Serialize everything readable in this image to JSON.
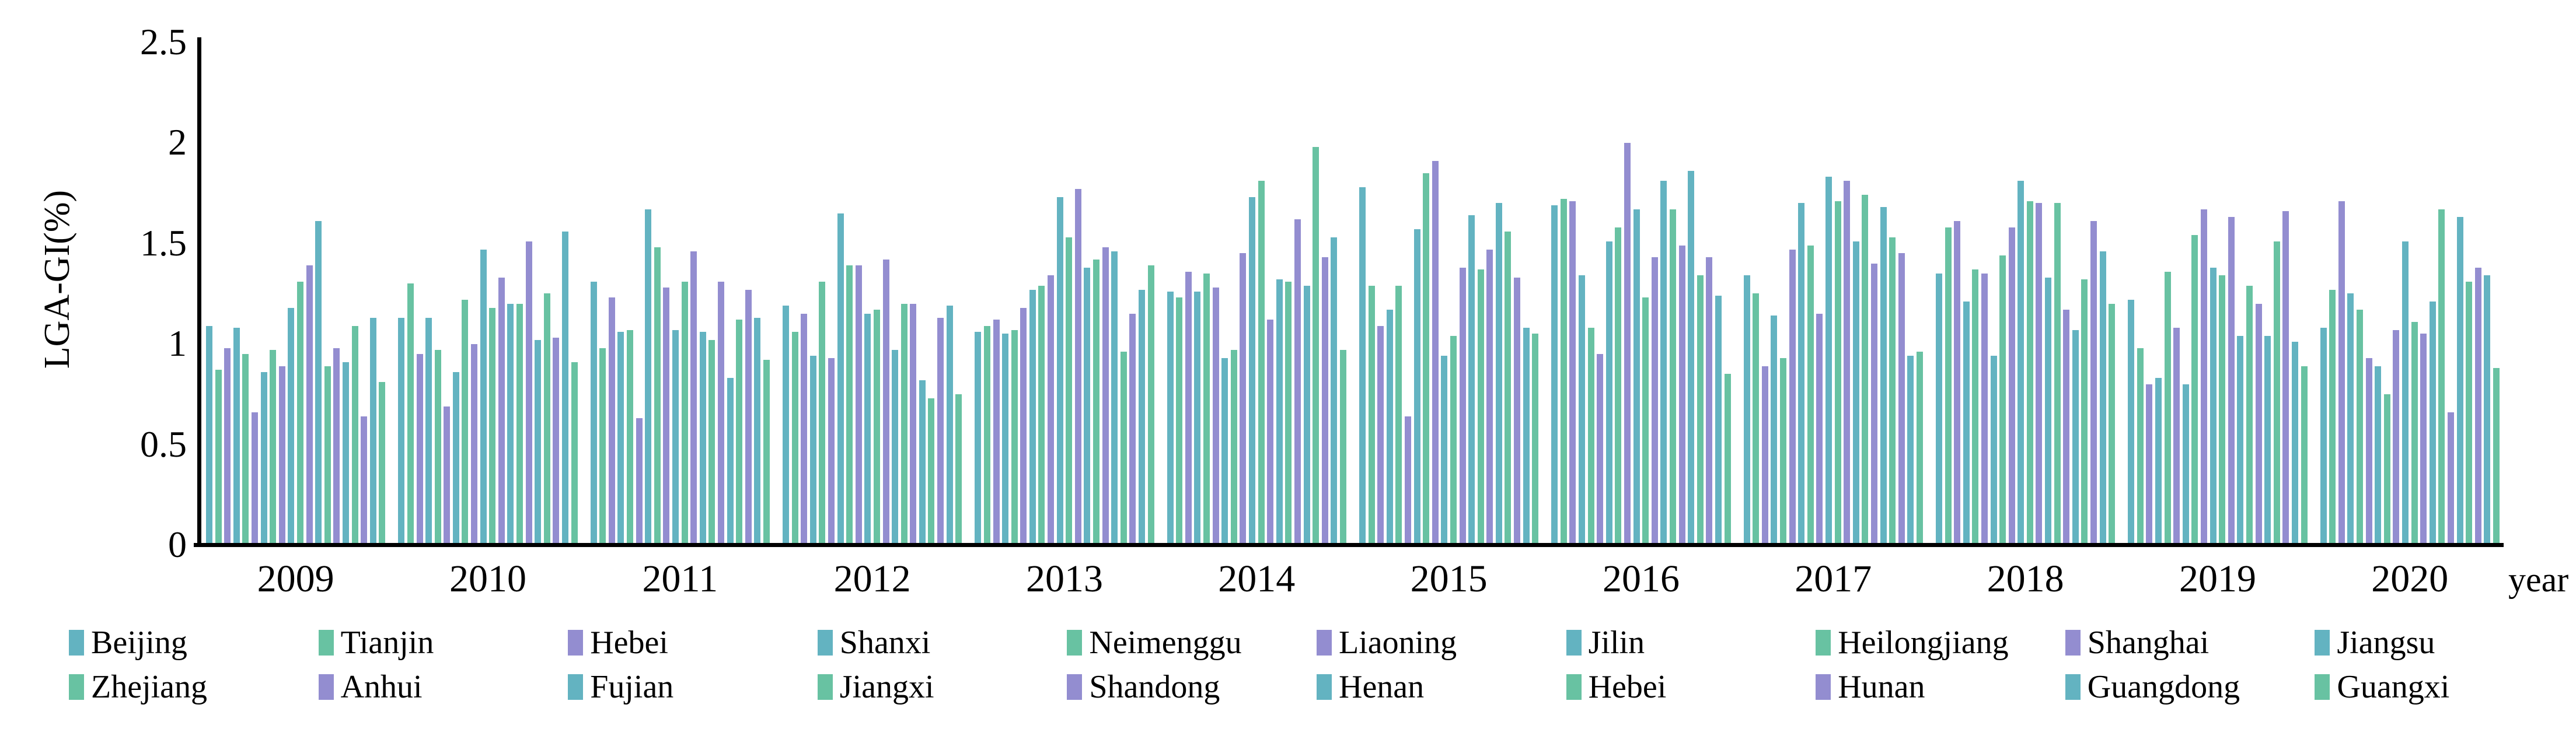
{
  "chart_data": {
    "type": "bar",
    "title": "",
    "ylabel": "LGA-GI(%)",
    "xlabel": "year",
    "ylim": [
      0,
      2.5
    ],
    "yticks": [
      "0",
      "0.5",
      "1",
      "1.5",
      "2",
      "2.5"
    ],
    "grid": false,
    "legend_position": "bottom",
    "palette": {
      "teal": "#63b3c1",
      "green": "#68c2a2",
      "purple": "#938dd0"
    },
    "categories": [
      "2009",
      "2010",
      "2011",
      "2012",
      "2013",
      "2014",
      "2015",
      "2016",
      "2017",
      "2018",
      "2019",
      "2020"
    ],
    "series": [
      {
        "name": "Beijing",
        "color": "#63b3c1",
        "values": [
          1.08,
          1.12,
          1.3,
          1.18,
          1.05,
          1.25,
          1.77,
          1.68,
          1.33,
          1.34,
          1.21,
          1.07
        ]
      },
      {
        "name": "Tianjin",
        "color": "#68c2a2",
        "values": [
          0.86,
          1.29,
          0.97,
          1.05,
          1.08,
          1.22,
          1.28,
          1.71,
          1.24,
          1.57,
          0.97,
          1.26
        ]
      },
      {
        "name": "Hebei",
        "color": "#938dd0",
        "values": [
          0.97,
          0.94,
          1.22,
          1.14,
          1.11,
          1.35,
          1.08,
          1.7,
          0.88,
          1.6,
          0.79,
          1.7
        ]
      },
      {
        "name": "Shanxi",
        "color": "#63b3c1",
        "values": [
          1.07,
          1.12,
          1.05,
          0.93,
          1.04,
          1.25,
          1.16,
          1.33,
          1.13,
          1.2,
          0.82,
          1.24
        ]
      },
      {
        "name": "Neimenggu",
        "color": "#68c2a2",
        "values": [
          0.94,
          0.96,
          1.06,
          1.3,
          1.06,
          1.34,
          1.28,
          1.07,
          0.92,
          1.36,
          1.35,
          1.16
        ]
      },
      {
        "name": "Liaoning",
        "color": "#938dd0",
        "values": [
          0.65,
          0.68,
          0.62,
          0.92,
          1.17,
          1.27,
          0.63,
          0.94,
          1.46,
          1.34,
          1.07,
          0.92
        ]
      },
      {
        "name": "Jilin",
        "color": "#63b3c1",
        "values": [
          0.85,
          0.85,
          1.66,
          1.64,
          1.26,
          0.92,
          1.56,
          1.5,
          1.69,
          0.93,
          0.79,
          0.88
        ]
      },
      {
        "name": "Heilongjiang",
        "color": "#68c2a2",
        "values": [
          0.96,
          1.21,
          1.47,
          1.38,
          1.28,
          0.96,
          1.84,
          1.57,
          1.48,
          1.43,
          1.53,
          0.74
        ]
      },
      {
        "name": "Shanghai",
        "color": "#938dd0",
        "values": [
          0.88,
          0.99,
          1.27,
          1.38,
          1.33,
          1.44,
          1.9,
          1.99,
          1.14,
          1.57,
          1.66,
          1.06
        ]
      },
      {
        "name": "Jiangsu",
        "color": "#63b3c1",
        "values": [
          1.17,
          1.46,
          1.06,
          1.14,
          1.72,
          1.72,
          0.93,
          1.66,
          1.82,
          1.8,
          1.37,
          1.5
        ]
      },
      {
        "name": "Zhejiang",
        "color": "#68c2a2",
        "values": [
          1.3,
          1.17,
          1.3,
          1.16,
          1.52,
          1.8,
          1.03,
          1.22,
          1.7,
          1.7,
          1.33,
          1.1
        ]
      },
      {
        "name": "Anhui",
        "color": "#938dd0",
        "values": [
          1.38,
          1.32,
          1.45,
          1.41,
          1.76,
          1.11,
          1.37,
          1.42,
          1.8,
          1.69,
          1.62,
          1.04
        ]
      },
      {
        "name": "Fujian",
        "color": "#63b3c1",
        "values": [
          1.6,
          1.19,
          1.05,
          0.96,
          1.37,
          1.31,
          1.63,
          1.8,
          1.5,
          1.32,
          1.03,
          1.2
        ]
      },
      {
        "name": "Jiangxi",
        "color": "#68c2a2",
        "values": [
          0.88,
          1.19,
          1.01,
          1.19,
          1.41,
          1.3,
          1.36,
          1.66,
          1.73,
          1.69,
          1.28,
          1.66
        ]
      },
      {
        "name": "Shandong",
        "color": "#938dd0",
        "values": [
          0.97,
          1.5,
          1.3,
          1.19,
          1.47,
          1.61,
          1.46,
          1.48,
          1.39,
          1.16,
          1.19,
          0.65
        ]
      },
      {
        "name": "Henan",
        "color": "#63b3c1",
        "values": [
          0.9,
          1.01,
          0.82,
          0.81,
          1.45,
          1.28,
          1.69,
          1.85,
          1.67,
          1.06,
          1.03,
          1.62
        ]
      },
      {
        "name": "Hebei",
        "color": "#68c2a2",
        "values": [
          1.08,
          1.24,
          1.11,
          0.72,
          0.95,
          1.97,
          1.55,
          1.33,
          1.52,
          1.31,
          1.5,
          1.3
        ]
      },
      {
        "name": "Hunan",
        "color": "#938dd0",
        "values": [
          0.63,
          1.02,
          1.26,
          1.12,
          1.14,
          1.42,
          1.32,
          1.42,
          1.44,
          1.6,
          1.65,
          1.37
        ]
      },
      {
        "name": "Guangdong",
        "color": "#63b3c1",
        "values": [
          1.12,
          1.55,
          1.12,
          1.18,
          1.26,
          1.52,
          1.07,
          1.23,
          0.93,
          1.45,
          1.0,
          1.33
        ]
      },
      {
        "name": "Guangxi",
        "color": "#68c2a2",
        "values": [
          0.8,
          0.9,
          0.91,
          0.74,
          1.38,
          0.96,
          1.04,
          0.84,
          0.95,
          1.19,
          0.88,
          0.87
        ]
      }
    ]
  }
}
